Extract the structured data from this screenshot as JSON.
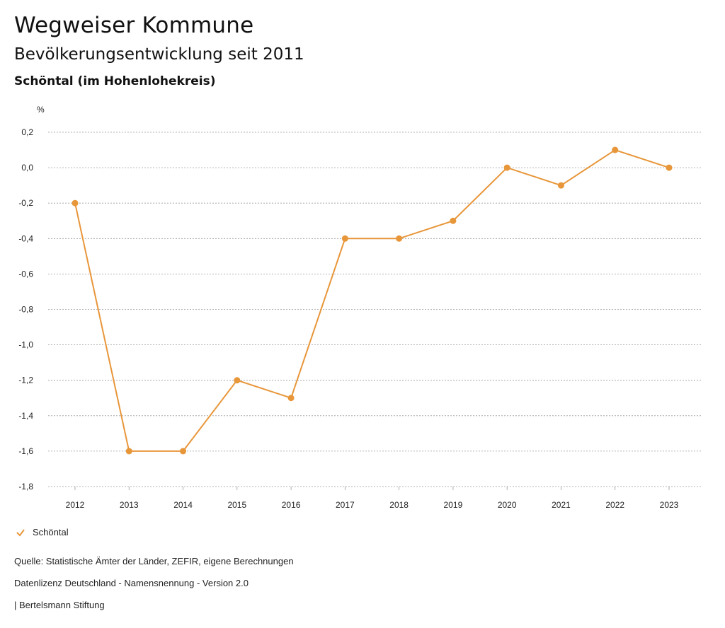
{
  "header": {
    "title": "Wegweiser Kommune",
    "subtitle": "Bevölkerungsentwicklung seit 2011",
    "region": "Schöntal (im Hohenlohekreis)"
  },
  "chart_data": {
    "type": "line",
    "ylabel": "%",
    "x": [
      "2012",
      "2013",
      "2014",
      "2015",
      "2016",
      "2017",
      "2018",
      "2019",
      "2020",
      "2021",
      "2022",
      "2023"
    ],
    "series": [
      {
        "name": "Schöntal",
        "color": "#e8963a",
        "values": [
          -0.2,
          -1.6,
          -1.6,
          -1.2,
          -1.3,
          -0.4,
          -0.4,
          -0.3,
          0.0,
          -0.1,
          0.1,
          0.0
        ]
      }
    ],
    "ylim": [
      -1.8,
      0.2
    ],
    "yticks": [
      0.2,
      0.0,
      -0.2,
      -0.4,
      -0.6,
      -0.8,
      -1.0,
      -1.2,
      -1.4,
      -1.6,
      -1.8
    ],
    "ytick_labels": [
      "0,2",
      "0,0",
      "-0,2",
      "-0,4",
      "-0,6",
      "-0,8",
      "-1,0",
      "-1,2",
      "-1,4",
      "-1,6",
      "-1,8"
    ],
    "grid": true,
    "legend": "bottom-left"
  },
  "legend": {
    "label": "Schöntal"
  },
  "footer": {
    "source": "Quelle: Statistische Ämter der Länder, ZEFIR, eigene Berechnungen",
    "license": "Datenlizenz Deutschland - Namensnennung - Version 2.0",
    "publisher": "| Bertelsmann Stiftung"
  }
}
